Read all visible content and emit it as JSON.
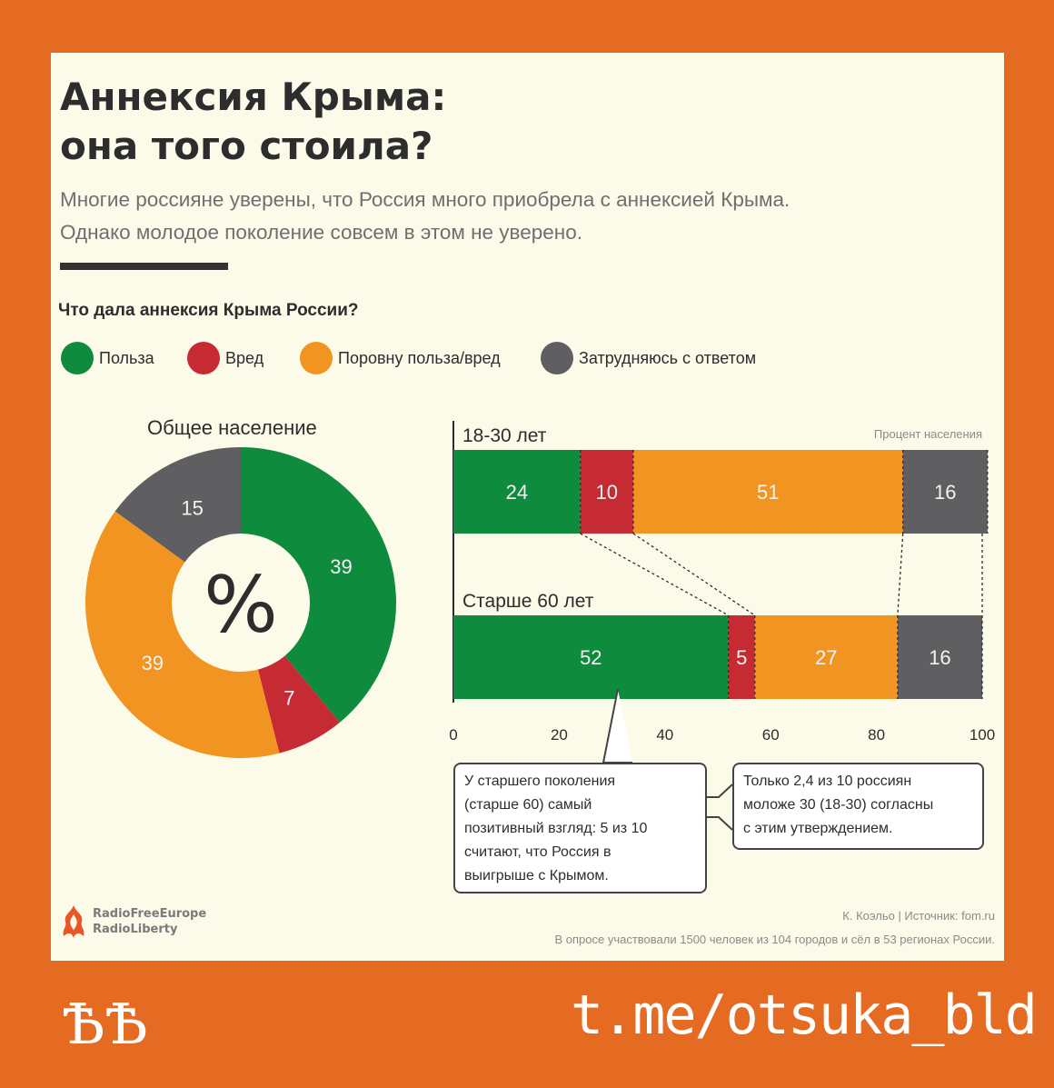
{
  "title_lines": [
    "Аннексия Крыма:",
    "она того стоила?"
  ],
  "subtitle_lines": [
    "Многие россияне уверены, что Россия много приобрела с аннексией Крыма.",
    "Однако молодое поколение совсем в этом не уверено."
  ],
  "question": "Что дала аннексия Крыма России?",
  "colors": {
    "benefit": "#0f8b3d",
    "harm": "#c62a33",
    "equal": "#f29422",
    "unsure": "#5f5f61",
    "background": "#fcfbe9",
    "frame": "#e56a22"
  },
  "legend": [
    {
      "label": "Польза",
      "color": "#0f8b3d"
    },
    {
      "label": "Вред",
      "color": "#c62a33"
    },
    {
      "label": "Поровну польза/вред",
      "color": "#f29422"
    },
    {
      "label": "Затрудняюсь с ответом",
      "color": "#5f5f61"
    }
  ],
  "chart_data": [
    {
      "type": "pie",
      "title": "Общее население",
      "center_label": "%",
      "labels": [
        "Польза",
        "Вред",
        "Поровну польза/вред",
        "Затрудняюсь с ответом"
      ],
      "values": [
        39,
        7,
        39,
        15
      ]
    },
    {
      "type": "bar",
      "orientation": "horizontal",
      "stacked": true,
      "annotation": "Процент населения",
      "categories": [
        "18-30 лет",
        "Старше 60 лет"
      ],
      "series": [
        {
          "name": "Польза",
          "values": [
            24,
            52
          ]
        },
        {
          "name": "Вред",
          "values": [
            10,
            5
          ]
        },
        {
          "name": "Поровну польза/вред",
          "values": [
            51,
            27
          ]
        },
        {
          "name": "Затрудняюсь с ответом",
          "values": [
            16,
            16
          ]
        }
      ],
      "xlim": [
        0,
        100
      ],
      "xticks": [
        "0",
        "20",
        "40",
        "60",
        "80",
        "100"
      ]
    }
  ],
  "callouts": {
    "older": [
      "У старшего поколения",
      "(старше 60) самый",
      "позитивный взгляд: 5 из 10",
      "считают, что Россия в",
      "выигрыше с Крымом."
    ],
    "younger": [
      "Только 2,4 из 10 россиян",
      "моложе 30 (18-30) согласны",
      "с этим утверждением."
    ]
  },
  "logo_lines": [
    "RadioFreeEurope",
    "RadioLiberty"
  ],
  "credit": "К. Коэльо | Источник: fom.ru",
  "footnote": "В опросе участвовали 1500 человек из 104 городов и сёл в 53 регионах России.",
  "signature_left": "ѢѢ",
  "signature_right": "t.me/otsuka_bld"
}
